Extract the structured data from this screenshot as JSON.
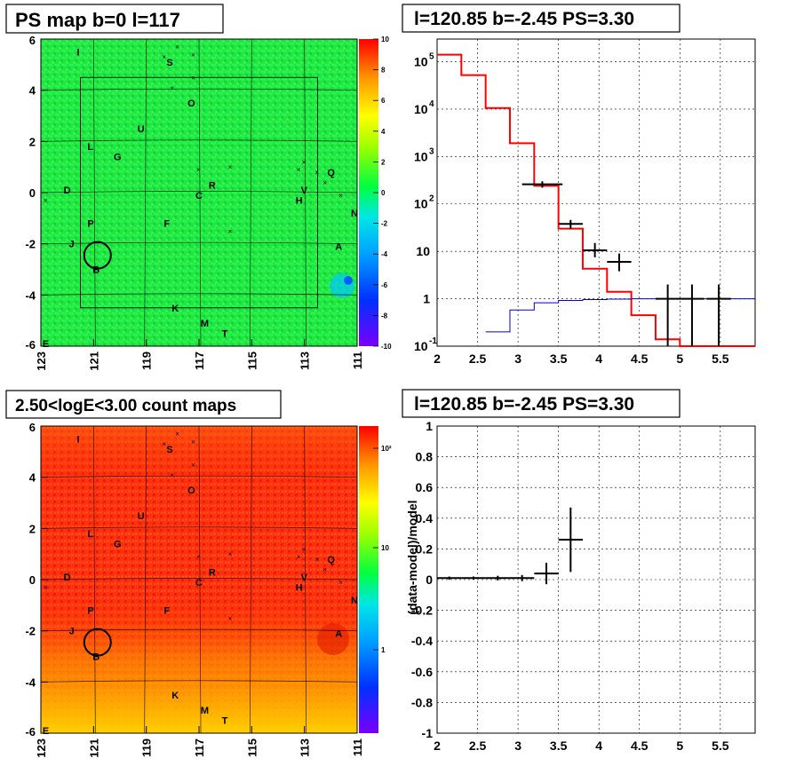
{
  "colors": {
    "data": "#000000",
    "model": "#ff0000",
    "background_model": "#0000cc",
    "grid": "#000000"
  },
  "chart_data": [
    {
      "type": "heatmap",
      "title": "PS map b=0 l=117",
      "x_ticks": [
        "123",
        "121",
        "119",
        "117",
        "115",
        "113",
        "111"
      ],
      "y_ticks": [
        "6",
        "4",
        "2",
        "0",
        "-2",
        "-4",
        "-6"
      ],
      "xlim": [
        123,
        111
      ],
      "ylim": [
        -6,
        6
      ],
      "colorbar": {
        "ticks": [
          "10",
          "8",
          "6",
          "4",
          "2",
          "0",
          "-2",
          "-4",
          "-6",
          "-8",
          "-10"
        ],
        "scale": "linear",
        "range": [
          -10,
          10
        ]
      },
      "dominant_value": 0.5,
      "roi_box": {
        "l_range": [
          121.5,
          112.5
        ],
        "b_range": [
          -4.5,
          4.5
        ]
      },
      "selected_source": {
        "label": "B",
        "l": 120.85,
        "b": -2.45
      },
      "source_labels": [
        {
          "label": "I",
          "l": 121.5,
          "b": 5.5
        },
        {
          "label": "S",
          "l": 118.1,
          "b": 5.1
        },
        {
          "label": "O",
          "l": 117.3,
          "b": 3.5
        },
        {
          "label": "U",
          "l": 119.2,
          "b": 2.5
        },
        {
          "label": "L",
          "l": 121.1,
          "b": 1.8
        },
        {
          "label": "G",
          "l": 120.1,
          "b": 1.4
        },
        {
          "label": "D",
          "l": 122.0,
          "b": 0.1
        },
        {
          "label": "C",
          "l": 117.0,
          "b": -0.1
        },
        {
          "label": "R",
          "l": 116.5,
          "b": 0.3
        },
        {
          "label": "H",
          "l": 113.2,
          "b": -0.3
        },
        {
          "label": "V",
          "l": 113.0,
          "b": 0.1
        },
        {
          "label": "Q",
          "l": 112.0,
          "b": 0.8
        },
        {
          "label": "N",
          "l": 111.1,
          "b": -0.8
        },
        {
          "label": "P",
          "l": 121.1,
          "b": -1.2
        },
        {
          "label": "F",
          "l": 118.2,
          "b": -1.2
        },
        {
          "label": "J",
          "l": 121.8,
          "b": -2.0
        },
        {
          "label": "A",
          "l": 111.7,
          "b": -2.1
        },
        {
          "label": "B",
          "l": 120.9,
          "b": -3.0
        },
        {
          "label": "K",
          "l": 117.9,
          "b": -4.5
        },
        {
          "label": "M",
          "l": 116.8,
          "b": -5.1
        },
        {
          "label": "T",
          "l": 116.0,
          "b": -5.5
        },
        {
          "label": "E",
          "l": 122.8,
          "b": -5.9
        }
      ],
      "cross_markers": [
        {
          "l": 118.3,
          "b": 5.3
        },
        {
          "l": 117.8,
          "b": 5.7
        },
        {
          "l": 117.2,
          "b": 5.4
        },
        {
          "l": 117.2,
          "b": 4.5
        },
        {
          "l": 118.0,
          "b": 4.1
        },
        {
          "l": 117.0,
          "b": 0.9
        },
        {
          "l": 115.8,
          "b": 1.0
        },
        {
          "l": 113.0,
          "b": 1.2
        },
        {
          "l": 113.2,
          "b": 0.9
        },
        {
          "l": 112.5,
          "b": 0.8
        },
        {
          "l": 112.2,
          "b": 0.4
        },
        {
          "l": 111.6,
          "b": -0.1
        },
        {
          "l": 122.8,
          "b": -0.3
        },
        {
          "l": 115.8,
          "b": -1.5
        }
      ]
    },
    {
      "type": "line",
      "title": "l=120.85 b=-2.45 PS=3.30",
      "xlim": [
        2,
        5.93
      ],
      "ylim": [
        0.1,
        300000
      ],
      "yscale": "log",
      "x_ticks": [
        "2",
        "2.5",
        "3",
        "3.5",
        "4",
        "4.5",
        "5",
        "5.5"
      ],
      "y_ticks": [
        "10^-1",
        "1",
        "10",
        "10^2",
        "10^3",
        "10^4",
        "10^5"
      ],
      "grid": true,
      "series": [
        {
          "style": "step",
          "edges": [
            2.0,
            2.3,
            2.6,
            2.9,
            3.2,
            3.5,
            3.8,
            4.1,
            4.4,
            4.7,
            5.0,
            5.3,
            5.6,
            5.93
          ],
          "values": [
            140000,
            52000,
            10500,
            1900,
            240,
            30,
            4.3,
            1.4,
            0.45,
            0.14,
            0.05,
            0.05,
            0.1
          ]
        },
        {
          "style": "step",
          "edges": [
            2.6,
            2.9,
            3.2,
            3.5,
            3.8,
            4.1,
            4.4,
            4.7,
            5.0,
            5.3,
            5.6,
            5.93
          ],
          "values": [
            0.2,
            0.58,
            0.82,
            0.92,
            0.96,
            0.98,
            1.0,
            1.0,
            1.0,
            1.0,
            1.0
          ]
        },
        {
          "style": "errorbar",
          "points": [
            {
              "x": 3.3,
              "y": 260,
              "xerr": 0.25,
              "ylo": 220,
              "yhi": 300
            },
            {
              "x": 3.65,
              "y": 38,
              "xerr": 0.15,
              "ylo": 30,
              "yhi": 46
            },
            {
              "x": 3.95,
              "y": 10.5,
              "xerr": 0.15,
              "ylo": 7.5,
              "yhi": 15
            },
            {
              "x": 4.25,
              "y": 6,
              "xerr": 0.15,
              "ylo": 3.8,
              "yhi": 9
            },
            {
              "x": 4.85,
              "y": 1,
              "xerr": 0.15,
              "ylo": 0.1,
              "yhi": 2
            },
            {
              "x": 5.15,
              "y": 1,
              "xerr": 0.15,
              "ylo": 0.1,
              "yhi": 2
            },
            {
              "x": 5.48,
              "y": 1,
              "xerr": 0.15,
              "ylo": 0.1,
              "yhi": 2
            }
          ]
        }
      ]
    },
    {
      "type": "heatmap",
      "title": "2.50<logE<3.00 count maps",
      "x_ticks": [
        "123",
        "121",
        "119",
        "117",
        "115",
        "113",
        "111"
      ],
      "y_ticks": [
        "6",
        "4",
        "2",
        "0",
        "-2",
        "-4",
        "-6"
      ],
      "xlim": [
        123,
        111
      ],
      "ylim": [
        -6,
        6
      ],
      "colorbar": {
        "ticks": [
          "10²",
          "10",
          "1"
        ],
        "scale": "log"
      },
      "trend": "counts peak near b=0 and fall off toward |b|=6"
    },
    {
      "type": "scatter",
      "title": "l=120.85 b=-2.45 PS=3.30",
      "ylabel": "(data-model)/model",
      "xlim": [
        2,
        5.93
      ],
      "ylim": [
        -1,
        1
      ],
      "x_ticks": [
        "2",
        "2.5",
        "3",
        "3.5",
        "4",
        "4.5",
        "5",
        "5.5"
      ],
      "y_ticks": [
        "1",
        "0.8",
        "0.6",
        "0.4",
        "0.2",
        "0",
        "-0.2",
        "-0.4",
        "-0.6",
        "-0.8",
        "-1"
      ],
      "grid": true,
      "points": [
        {
          "x": 2.15,
          "y": 0.01,
          "xerr": 0.15,
          "yerr": 0.01
        },
        {
          "x": 2.45,
          "y": 0.01,
          "xerr": 0.15,
          "yerr": 0.01
        },
        {
          "x": 2.75,
          "y": 0.01,
          "xerr": 0.15,
          "yerr": 0.015
        },
        {
          "x": 3.05,
          "y": 0.01,
          "xerr": 0.15,
          "yerr": 0.02
        },
        {
          "x": 3.35,
          "y": 0.04,
          "xerr": 0.15,
          "yerr": 0.07
        },
        {
          "x": 3.65,
          "y": 0.26,
          "xerr": 0.15,
          "yerr": 0.21
        }
      ]
    }
  ]
}
